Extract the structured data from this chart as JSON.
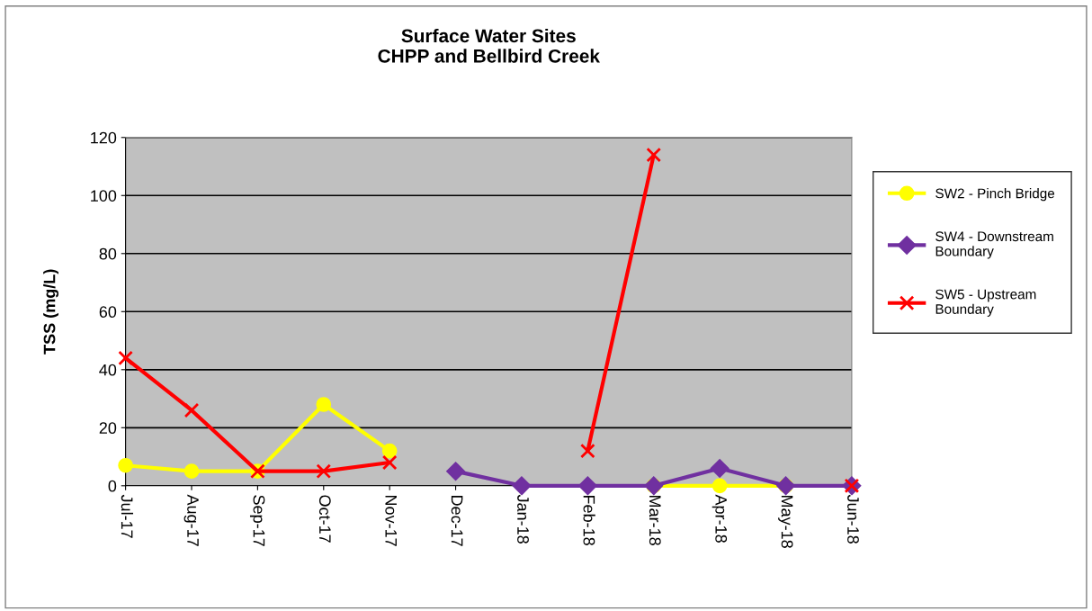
{
  "chart_data": {
    "type": "line",
    "title": "Surface Water Sites\nCHPP and Bellbird Creek",
    "ylabel": "TSS (mg/L)",
    "categories": [
      "Jul-17",
      "Aug-17",
      "Sep-17",
      "Oct-17",
      "Nov-17",
      "Dec-17",
      "Jan-18",
      "Feb-18",
      "Mar-18",
      "Apr-18",
      "May-18",
      "Jun-18"
    ],
    "series": [
      {
        "name": "SW2 - Pinch Bridge",
        "color": "#ffff00",
        "marker": "circle",
        "values": [
          7,
          5,
          5,
          28,
          12,
          null,
          null,
          null,
          0,
          0,
          0,
          null
        ]
      },
      {
        "name": "SW4 - Downstream Boundary",
        "color": "#7030a0",
        "marker": "diamond",
        "values": [
          null,
          null,
          null,
          null,
          null,
          5,
          0,
          0,
          0,
          6,
          0,
          0
        ]
      },
      {
        "name": "SW5 - Upstream Boundary",
        "color": "#ff0000",
        "marker": "cross",
        "values": [
          44,
          26,
          5,
          5,
          8,
          null,
          null,
          12,
          114,
          null,
          null,
          0
        ]
      }
    ],
    "ylim": [
      0,
      120
    ],
    "yticks": [
      0,
      20,
      40,
      60,
      80,
      100,
      120
    ],
    "grid": "y",
    "legend": "right"
  }
}
